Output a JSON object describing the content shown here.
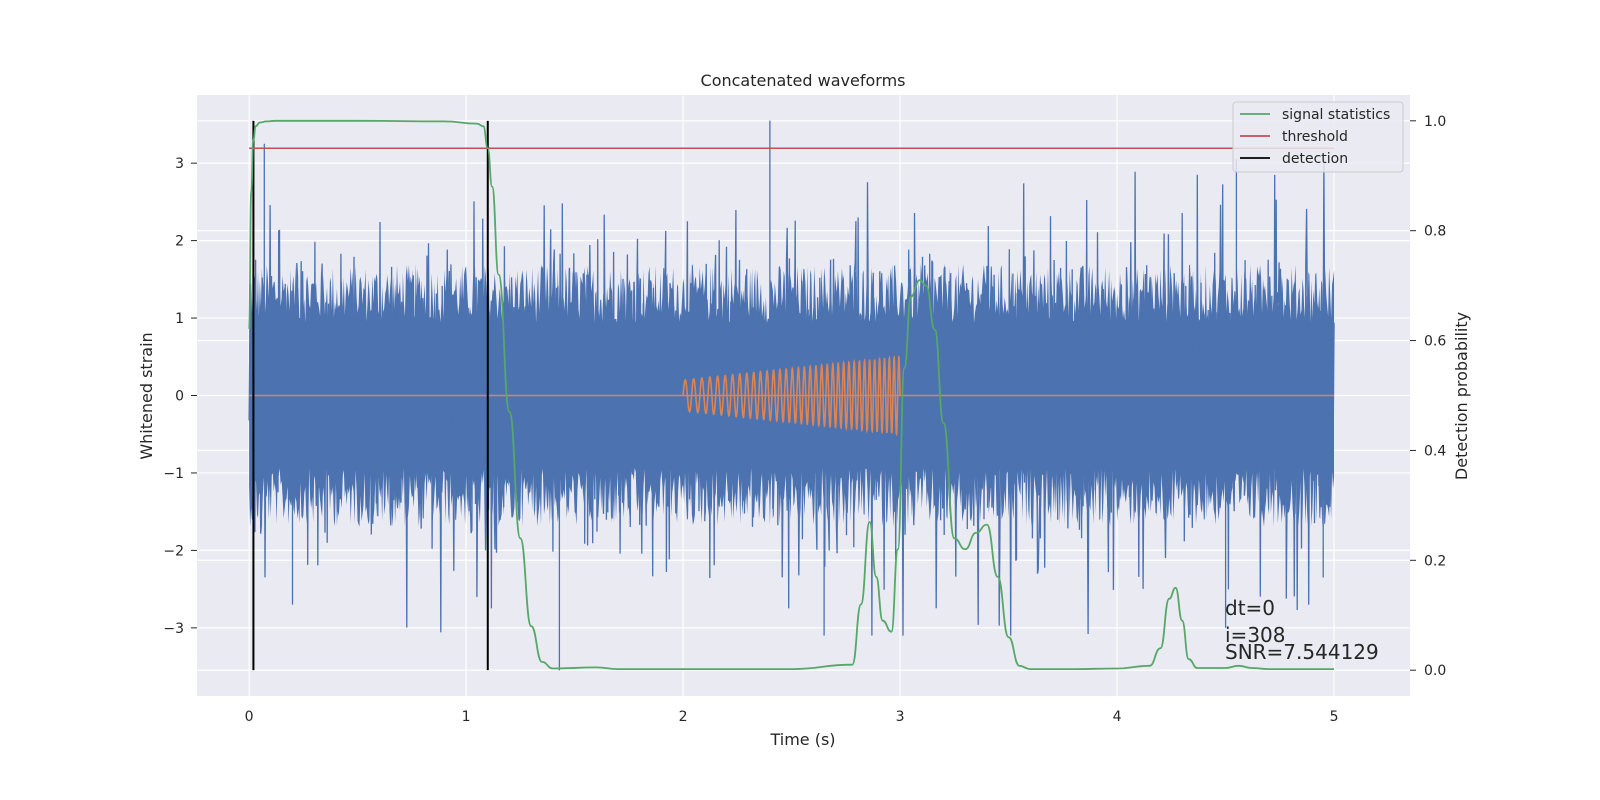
{
  "chart_data": {
    "type": "line",
    "title": "Concatenated waveforms",
    "xlabel": "Time (s)",
    "ylabel": "Whitened strain",
    "y2label": "Detection probability",
    "xlim": [
      -0.24,
      5.35
    ],
    "ylim": [
      -3.88,
      3.88
    ],
    "y2lim": [
      -0.047,
      1.047
    ],
    "xticks": [
      0,
      1,
      2,
      3,
      4,
      5
    ],
    "yticks": [
      -3,
      -2,
      -1,
      0,
      1,
      2,
      3
    ],
    "y2ticks": [
      0.0,
      0.2,
      0.4,
      0.6,
      0.8,
      1.0
    ],
    "xtick_labels": [
      "0",
      "1",
      "2",
      "3",
      "4",
      "5"
    ],
    "ytick_labels": [
      "−3",
      "−2",
      "−1",
      "0",
      "1",
      "2",
      "3"
    ],
    "y2tick_labels": [
      "0.0",
      "0.2",
      "0.4",
      "0.6",
      "0.8",
      "1.0"
    ],
    "grid": true,
    "legend_position": "top-right",
    "series": [
      {
        "name": "whitened noise",
        "axis": "left",
        "color": "#4c72b0",
        "kind": "noise",
        "x_range": [
          0,
          5
        ],
        "typical_amplitude": 1.7,
        "extreme_peaks": [
          {
            "x": 2.4,
            "y": 3.55
          },
          {
            "x": 0.07,
            "y": 3.25
          },
          {
            "x": 4.55,
            "y": 3.05
          },
          {
            "x": 1.43,
            "y": -3.55
          },
          {
            "x": 2.65,
            "y": -3.1
          },
          {
            "x": 4.5,
            "y": -3.0
          },
          {
            "x": 0.2,
            "y": -2.7
          },
          {
            "x": 4.95,
            "y": -2.35
          }
        ]
      },
      {
        "name": "injected chirp",
        "axis": "left",
        "color": "#dd8452",
        "kind": "chirp",
        "x_range": [
          2.0,
          3.0
        ],
        "amplitude_start": 0.2,
        "amplitude_end": 0.5,
        "f_start": 25,
        "f_end": 46
      },
      {
        "name": "signal statistics",
        "axis": "right",
        "color": "#55a868",
        "x": [
          0,
          0.01,
          0.02,
          0.03,
          0.05,
          0.08,
          0.12,
          0.5,
          0.9,
          1.05,
          1.08,
          1.1,
          1.12,
          1.15,
          1.2,
          1.25,
          1.3,
          1.35,
          1.4,
          1.6,
          1.7,
          2.0,
          2.5,
          2.78,
          2.82,
          2.86,
          2.89,
          2.92,
          2.96,
          2.99,
          3.02,
          3.05,
          3.09,
          3.12,
          3.16,
          3.2,
          3.25,
          3.3,
          3.35,
          3.4,
          3.45,
          3.5,
          3.55,
          3.6,
          3.8,
          4.0,
          4.15,
          4.2,
          4.24,
          4.27,
          4.3,
          4.33,
          4.37,
          4.5,
          4.56,
          4.62,
          4.7,
          5.0
        ],
        "values": [
          0.62,
          0.87,
          0.965,
          0.99,
          0.997,
          0.999,
          1.0,
          1.0,
          0.999,
          0.995,
          0.99,
          0.95,
          0.88,
          0.72,
          0.47,
          0.24,
          0.08,
          0.015,
          0.003,
          0.005,
          0.002,
          0.002,
          0.002,
          0.01,
          0.12,
          0.27,
          0.17,
          0.09,
          0.07,
          0.22,
          0.55,
          0.68,
          0.71,
          0.7,
          0.62,
          0.45,
          0.24,
          0.22,
          0.25,
          0.265,
          0.17,
          0.06,
          0.008,
          0.002,
          0.002,
          0.003,
          0.008,
          0.04,
          0.13,
          0.15,
          0.09,
          0.02,
          0.004,
          0.004,
          0.008,
          0.004,
          0.002,
          0.002
        ]
      },
      {
        "name": "threshold",
        "axis": "right",
        "color": "#c44e52",
        "x": [
          0,
          5
        ],
        "values": [
          0.95,
          0.95
        ]
      }
    ],
    "detections": {
      "name": "detection",
      "color": "#000000",
      "x": [
        0.02,
        1.1
      ],
      "y2_range": [
        0.0,
        1.0
      ]
    },
    "legend": [
      {
        "label": "signal statistics",
        "color": "#55a868"
      },
      {
        "label": "threshold",
        "color": "#c44e52"
      },
      {
        "label": "detection",
        "color": "#000000"
      }
    ],
    "annotation": {
      "x": 4.5,
      "lines": [
        "dt=0",
        "i=308",
        "SNR=7.544129"
      ]
    }
  }
}
